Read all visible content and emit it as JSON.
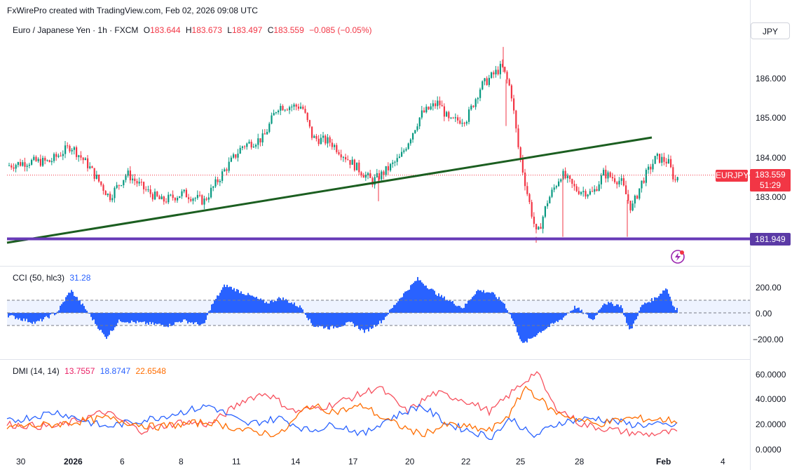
{
  "header": {
    "watermark": "FxWirePro created with TradingView.com, Feb 02, 2026 09:08 UTC"
  },
  "symbol": {
    "name": "Euro / Japanese Yen · 1h · FXCM",
    "open_label": "O",
    "open": "183.644",
    "high_label": "H",
    "high": "183.673",
    "low_label": "L",
    "low": "183.497",
    "close_label": "C",
    "close": "183.559",
    "change": "−0.085 (−0.05%)",
    "currency": "JPY",
    "ticker": "EURJPY",
    "last_price": "183.559",
    "countdown": "51:29",
    "support_level": "181.949"
  },
  "price_axis": [
    "186.000",
    "185.000",
    "184.000",
    "183.000"
  ],
  "cci": {
    "title": "CCI (50, hlc3)",
    "value": "31.28",
    "axis": [
      "200.00",
      "0.00",
      "−200.00"
    ]
  },
  "dmi": {
    "title": "DMI (14, 14)",
    "adx": "13.7557",
    "plus_di": "18.8747",
    "minus_di": "22.6548",
    "axis": [
      "60.0000",
      "40.0000",
      "20.0000",
      "0.0000"
    ]
  },
  "time_axis": [
    "30",
    "2026",
    "6",
    "8",
    "11",
    "14",
    "17",
    "20",
    "22",
    "25",
    "28",
    "Feb",
    "4"
  ],
  "colors": {
    "up": "#089981",
    "down": "#f23645",
    "trendline": "#1b5e20",
    "support": "#673ab7",
    "cci": "#2962ff",
    "adx": "#f7525f",
    "plus_di": "#2962ff",
    "minus_di": "#ff6d00"
  }
}
